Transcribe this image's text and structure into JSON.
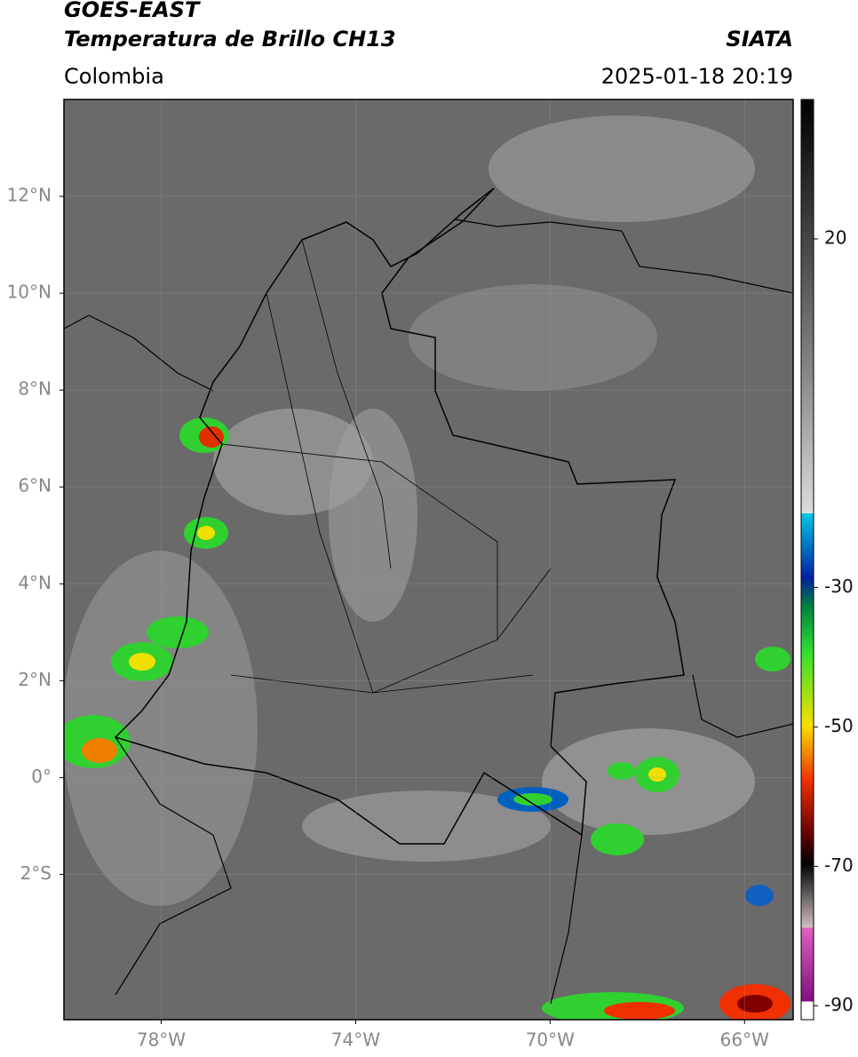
{
  "header": {
    "satellite": "GOES-EAST",
    "product": "Temperatura de Brillo CH13",
    "region": "Colombia",
    "agency": "SIATA",
    "datetime": "2025-01-18 20:19"
  },
  "map": {
    "lonlim": [
      -80,
      -65
    ],
    "latlim": [
      -5,
      14
    ],
    "lat_ticks": [
      {
        "value": 12,
        "label": "12°N"
      },
      {
        "value": 10,
        "label": "10°N"
      },
      {
        "value": 8,
        "label": "8°N"
      },
      {
        "value": 6,
        "label": "6°N"
      },
      {
        "value": 4,
        "label": "4°N"
      },
      {
        "value": 2,
        "label": "2°N"
      },
      {
        "value": 0,
        "label": "0°"
      },
      {
        "value": -2,
        "label": "2°S"
      }
    ],
    "lon_ticks": [
      {
        "value": -78,
        "label": "78°W"
      },
      {
        "value": -74,
        "label": "74°W"
      },
      {
        "value": -70,
        "label": "70°W"
      },
      {
        "value": -66,
        "label": "66°W"
      }
    ],
    "grid": true
  },
  "colorbar": {
    "lim": [
      -92,
      40
    ],
    "ticks": [
      20,
      -30,
      -50,
      -70,
      -90
    ]
  }
}
